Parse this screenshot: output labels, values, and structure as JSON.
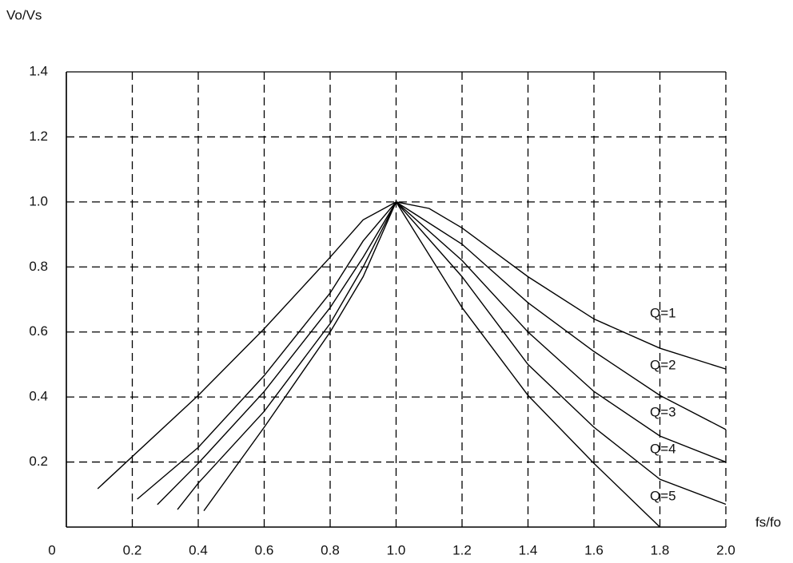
{
  "chart_data": {
    "type": "line",
    "x_label": "fs/fo",
    "y_label": "Vo/Vs",
    "xlim": [
      0,
      2.0
    ],
    "ylim": [
      0,
      1.4
    ],
    "xticks": [
      0,
      0.2,
      0.4,
      0.6,
      0.8,
      {
        "value": 1,
        "label": "1.0"
      },
      1.2,
      1.4,
      1.6,
      1.8,
      {
        "value": 2,
        "label": "2.0"
      }
    ],
    "yticks": [
      0.2,
      0.4,
      0.6,
      0.8,
      {
        "value": 1,
        "label": "1.0"
      },
      1.2,
      1.4
    ],
    "grid": true,
    "series": [
      {
        "name": "Q=1",
        "color": "#000000",
        "x": [
          0.095,
          0.4,
          0.6,
          0.8,
          0.9,
          1.0,
          1.1,
          1.2,
          1.4,
          1.6,
          1.8,
          2.0
        ],
        "values": [
          0.118,
          0.405,
          0.61,
          0.83,
          0.945,
          1.0,
          0.98,
          0.92,
          0.77,
          0.64,
          0.55,
          0.486
        ]
      },
      {
        "name": "Q=2",
        "color": "#000000",
        "x": [
          0.215,
          0.4,
          0.6,
          0.8,
          0.9,
          1.0,
          1.2,
          1.4,
          1.6,
          1.8,
          2.0
        ],
        "values": [
          0.086,
          0.245,
          0.466,
          0.72,
          0.88,
          1.0,
          0.87,
          0.69,
          0.54,
          0.405,
          0.3
        ]
      },
      {
        "name": "Q=3",
        "color": "#000000",
        "x": [
          0.276,
          0.4,
          0.6,
          0.8,
          0.9,
          1.0,
          1.2,
          1.4,
          1.6,
          1.8,
          2.0
        ],
        "values": [
          0.069,
          0.196,
          0.417,
          0.675,
          0.83,
          1.0,
          0.82,
          0.6,
          0.417,
          0.28,
          0.2
        ]
      },
      {
        "name": "Q=4",
        "color": "#000000",
        "x": [
          0.337,
          0.4,
          0.6,
          0.8,
          0.9,
          1.0,
          1.2,
          1.4,
          1.6,
          1.8,
          2.0
        ],
        "values": [
          0.054,
          0.135,
          0.356,
          0.626,
          0.8,
          1.0,
          0.77,
          0.5,
          0.307,
          0.147,
          0.07
        ]
      },
      {
        "name": "Q=5",
        "color": "#000000",
        "x": [
          0.417,
          0.6,
          0.8,
          0.9,
          1.0,
          1.2,
          1.4,
          1.6,
          1.8
        ],
        "values": [
          0.05,
          0.307,
          0.6,
          0.77,
          1.0,
          0.675,
          0.405,
          0.196,
          0
        ]
      }
    ]
  }
}
